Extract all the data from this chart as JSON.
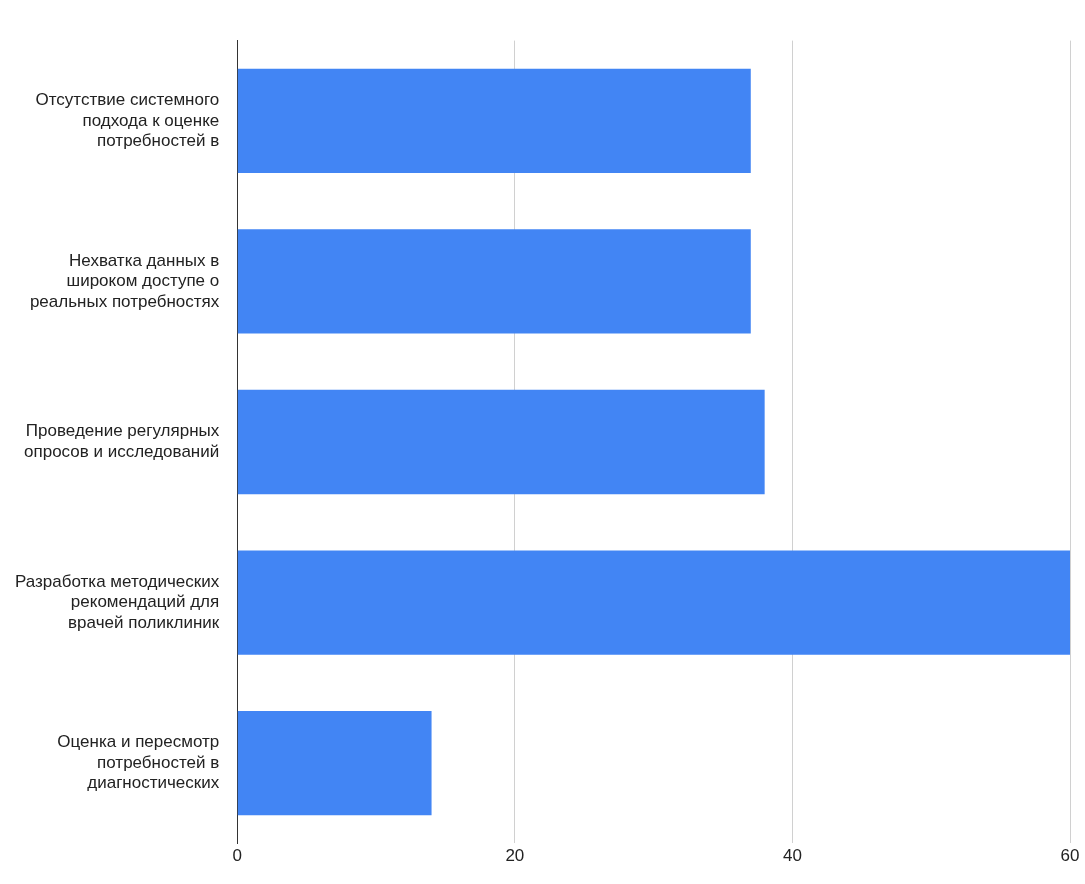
{
  "chart_data": {
    "type": "bar",
    "orientation": "horizontal",
    "categories": [
      "Отсутствие системного подхода к оценке потребностей в",
      "Нехватка данных в широком доступе о реальных потребностях",
      "Проведение регулярных опросов и исследований",
      "Разработка методических рекомендаций для врачей поликлиник",
      "Оценка и пересмотр потребностей в диагностических"
    ],
    "values": [
      37,
      37,
      38,
      60,
      14
    ],
    "color": "#4285f4",
    "xlim": [
      0,
      60
    ],
    "xticks": [
      0,
      20,
      40,
      60
    ],
    "grid": "x"
  }
}
